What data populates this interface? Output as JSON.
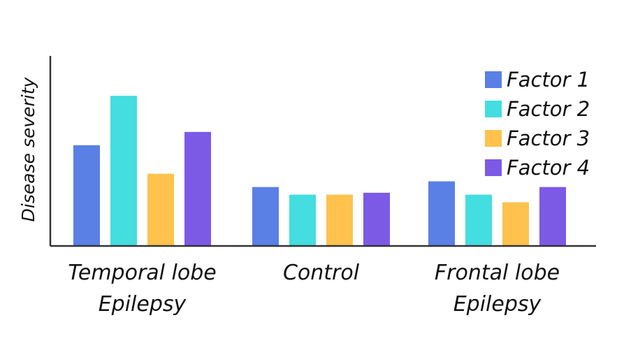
{
  "chart_data": {
    "type": "bar",
    "title": "",
    "xlabel": "",
    "ylabel": "Disease severity",
    "categories": [
      [
        "Temporal lobe",
        "Epilepsy"
      ],
      [
        "Control"
      ],
      [
        "Frontal lobe",
        "Epilepsy"
      ]
    ],
    "series": [
      {
        "name": "Factor 1",
        "color": "#5a80e6",
        "values": [
          5.3,
          3.1,
          3.4
        ]
      },
      {
        "name": "Factor 2",
        "color": "#44dde0",
        "values": [
          7.9,
          2.7,
          2.7
        ]
      },
      {
        "name": "Factor 3",
        "color": "#fec24d",
        "values": [
          3.8,
          2.7,
          2.3
        ]
      },
      {
        "name": "Factor 4",
        "color": "#7c5ae6",
        "values": [
          6.0,
          2.8,
          3.1
        ]
      }
    ],
    "ylim": [
      0,
      10
    ],
    "grid": false,
    "ticks": false,
    "legend_position": "top-right",
    "axis_color": "#333333"
  }
}
